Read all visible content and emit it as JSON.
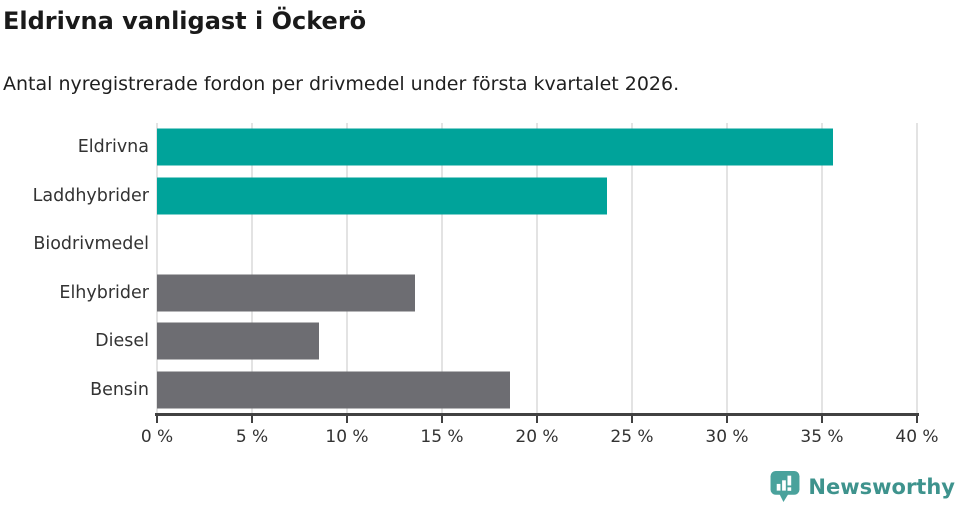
{
  "header": {
    "title": "Eldrivna vanligast i Öckerö",
    "subtitle": "Antal nyregistrerade fordon per drivmedel under första kvartalet 2026."
  },
  "chart_data": {
    "type": "bar",
    "orientation": "horizontal",
    "title": "Eldrivna vanligast i Öckerö",
    "subtitle": "Antal nyregistrerade fordon per drivmedel under första kvartalet 2026.",
    "categories": [
      "Eldrivna",
      "Laddhybrider",
      "Biodrivmedel",
      "Elhybrider",
      "Diesel",
      "Bensin"
    ],
    "values": [
      35.6,
      23.7,
      0,
      13.6,
      8.5,
      18.6
    ],
    "unit": "%",
    "xlim": [
      0,
      40
    ],
    "x_ticks": [
      0,
      5,
      10,
      15,
      20,
      25,
      30,
      35,
      40
    ],
    "x_tick_labels": [
      "0 %",
      "5 %",
      "10 %",
      "15 %",
      "20 %",
      "25 %",
      "30 %",
      "35 %",
      "40 %"
    ],
    "bar_colors": [
      "#00a39a",
      "#00a39a",
      "#00a39a",
      "#6d6d72",
      "#6d6d72",
      "#6d6d72"
    ],
    "highlight_color": "#00a39a",
    "default_color": "#6d6d72",
    "gridline_color": "#e3e3e3",
    "axis_color": "#414141",
    "grid": true,
    "legend": "none"
  },
  "footer": {
    "brand": "Newsworthy",
    "brand_color": "#3e938d",
    "icon": "newsworthy-speech-bubble-chart-icon",
    "icon_color": "#4aa29c"
  }
}
